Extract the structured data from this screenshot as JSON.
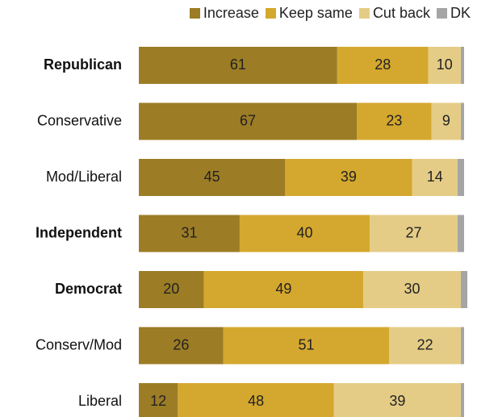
{
  "chart_data": {
    "type": "bar",
    "orientation": "horizontal",
    "stacked": true,
    "xlim": [
      0,
      100
    ],
    "legend": "top-right",
    "categories": [
      "Republican",
      "Conservative",
      "Mod/Liberal",
      "Independent",
      "Democrat",
      "Conserv/Mod",
      "Liberal"
    ],
    "bold_categories": [
      "Republican",
      "Independent",
      "Democrat"
    ],
    "series": [
      {
        "name": "Increase",
        "color": "#9c7c25",
        "values": [
          61,
          67,
          45,
          31,
          20,
          26,
          12
        ]
      },
      {
        "name": "Keep same",
        "color": "#d4a82e",
        "values": [
          28,
          23,
          39,
          40,
          49,
          51,
          48
        ]
      },
      {
        "name": "Cut back",
        "color": "#e5cc86",
        "values": [
          10,
          9,
          14,
          27,
          30,
          22,
          39
        ]
      },
      {
        "name": "DK",
        "color": "#a5a5a5",
        "values": [
          1,
          1,
          2,
          2,
          2,
          1,
          1
        ]
      }
    ],
    "value_labels_shown_for": [
      "Increase",
      "Keep same",
      "Cut back"
    ]
  }
}
